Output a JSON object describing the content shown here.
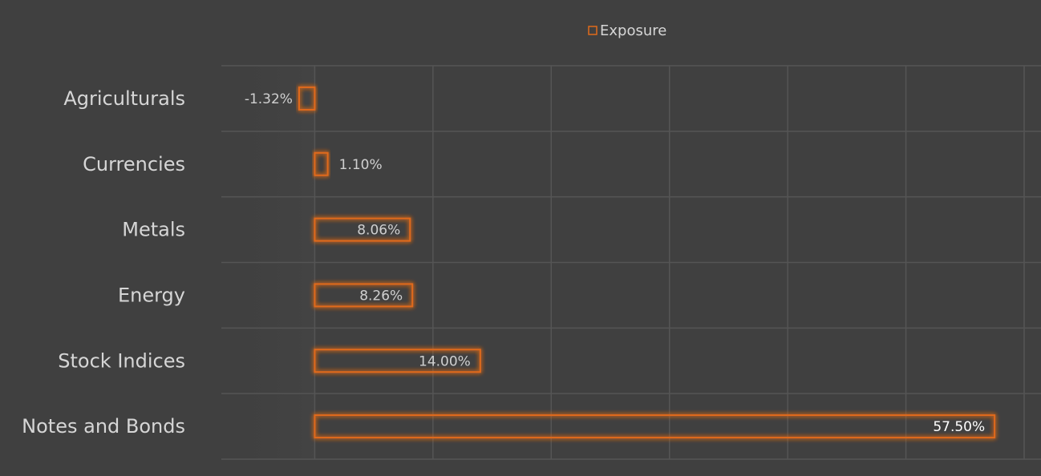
{
  "chart_data": {
    "type": "bar",
    "orientation": "horizontal",
    "categories": [
      "Agriculturals",
      "Currencies",
      "Metals",
      "Energy",
      "Stock Indices",
      "Notes and Bonds"
    ],
    "series": [
      {
        "name": "Exposure",
        "values": [
          -1.32,
          1.1,
          8.06,
          8.26,
          14.0,
          57.5
        ],
        "labels": [
          "-1.32%",
          "1.10%",
          "8.06%",
          "8.26%",
          "14.00%",
          "57.50%"
        ]
      }
    ],
    "xlim": [
      -10,
      60
    ],
    "x_gridlines": [
      -10,
      0,
      10,
      20,
      30,
      40,
      50,
      60
    ],
    "grid": true,
    "legend": "top-center",
    "title": "",
    "xlabel": "",
    "ylabel": "",
    "colors": {
      "background": "#404040",
      "bar_stroke": "#e06a1a",
      "bar_glow": "#ff6a00",
      "grid": "#555555",
      "category_text": "#d6d6d6",
      "value_text": "#d0d0d0",
      "value_text_highlight": "#ffffff",
      "legend_text": "#d6d6d6"
    }
  }
}
